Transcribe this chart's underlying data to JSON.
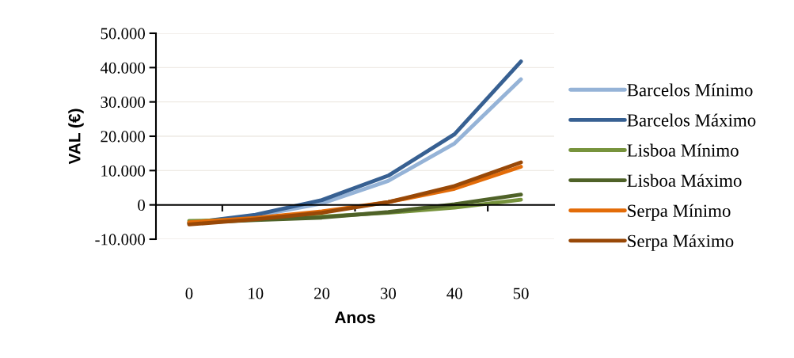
{
  "chart_data": {
    "type": "line",
    "xlabel": "Anos",
    "ylabel": "VAL (€)",
    "categories": [
      "0",
      "10",
      "20",
      "30",
      "40",
      "50"
    ],
    "series": [
      {
        "name": "Barcelos Mínimo",
        "color": "#95b3d7",
        "values": [
          -5300,
          -3200,
          400,
          7000,
          17900,
          36600
        ]
      },
      {
        "name": "Barcelos Máximo",
        "color": "#376092",
        "values": [
          -5300,
          -2900,
          1400,
          8500,
          20600,
          41800
        ]
      },
      {
        "name": "Lisboa Mínimo",
        "color": "#77933c",
        "values": [
          -4700,
          -4200,
          -3400,
          -2300,
          -800,
          1500
        ]
      },
      {
        "name": "Lisboa Máximo",
        "color": "#4f6228",
        "values": [
          -5300,
          -4400,
          -3700,
          -2100,
          200,
          3000
        ]
      },
      {
        "name": "Serpa Mínimo",
        "color": "#e36c09",
        "values": [
          -5100,
          -3800,
          -1900,
          800,
          4700,
          11100
        ]
      },
      {
        "name": "Serpa Máximo",
        "color": "#984807",
        "values": [
          -5700,
          -4200,
          -2300,
          800,
          5500,
          12400
        ]
      }
    ],
    "ylim": [
      -10000,
      50000
    ],
    "yticks": [
      {
        "value": -10000,
        "label": "-10.000"
      },
      {
        "value": 0,
        "label": "0"
      },
      {
        "value": 10000,
        "label": "10.000"
      },
      {
        "value": 20000,
        "label": "20.000"
      },
      {
        "value": 30000,
        "label": "30.000"
      },
      {
        "value": 40000,
        "label": "40.000"
      },
      {
        "value": 50000,
        "label": "50.000"
      }
    ],
    "grid": "y",
    "legend": "right",
    "marker": "none",
    "line_style": "solid"
  }
}
